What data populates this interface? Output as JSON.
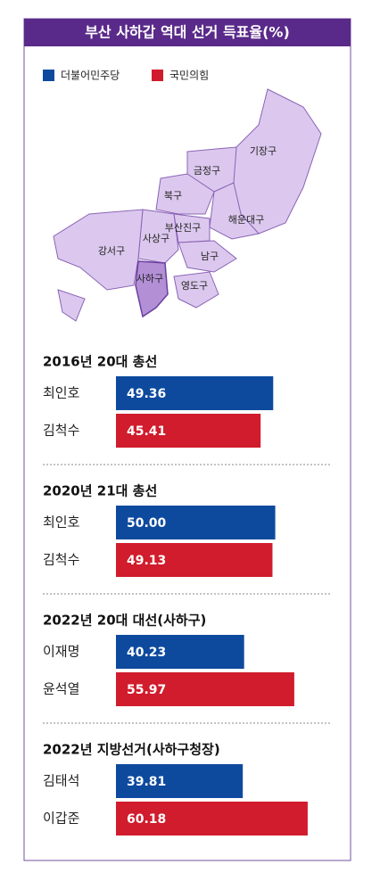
{
  "title": "부산 사하갑 역대 선거 득표율(%)",
  "legend": [
    {
      "label": "더불어민주당",
      "color": "#0d4a9e"
    },
    {
      "label": "국민의힘",
      "color": "#d01c2c"
    }
  ],
  "map": {
    "districts": [
      {
        "label": "기장구"
      },
      {
        "label": "금정구"
      },
      {
        "label": "북구"
      },
      {
        "label": "해운대구"
      },
      {
        "label": "부산진구"
      },
      {
        "label": "사상구"
      },
      {
        "label": "강서구"
      },
      {
        "label": "남구"
      },
      {
        "label": "사하구"
      },
      {
        "label": "영도구"
      }
    ]
  },
  "chart_data": [
    {
      "type": "bar",
      "title": "2016년 20대 총선",
      "categories": [
        "최인호",
        "김척수"
      ],
      "values": [
        49.36,
        45.41
      ],
      "colors": [
        "#0d4a9e",
        "#d01c2c"
      ],
      "xlim": [
        0,
        70
      ]
    },
    {
      "type": "bar",
      "title": "2020년 21대 총선",
      "categories": [
        "최인호",
        "김척수"
      ],
      "values": [
        50.0,
        49.13
      ],
      "value_labels": [
        "50.00",
        "49.13"
      ],
      "colors": [
        "#0d4a9e",
        "#d01c2c"
      ],
      "xlim": [
        0,
        70
      ]
    },
    {
      "type": "bar",
      "title": "2022년 20대 대선(사하구)",
      "categories": [
        "이재명",
        "윤석열"
      ],
      "values": [
        40.23,
        55.97
      ],
      "colors": [
        "#0d4a9e",
        "#d01c2c"
      ],
      "xlim": [
        0,
        70
      ]
    },
    {
      "type": "bar",
      "title": "2022년 지방선거(사하구청장)",
      "categories": [
        "김태석",
        "이갑준"
      ],
      "values": [
        39.81,
        60.18
      ],
      "colors": [
        "#0d4a9e",
        "#d01c2c"
      ],
      "xlim": [
        0,
        70
      ]
    }
  ]
}
